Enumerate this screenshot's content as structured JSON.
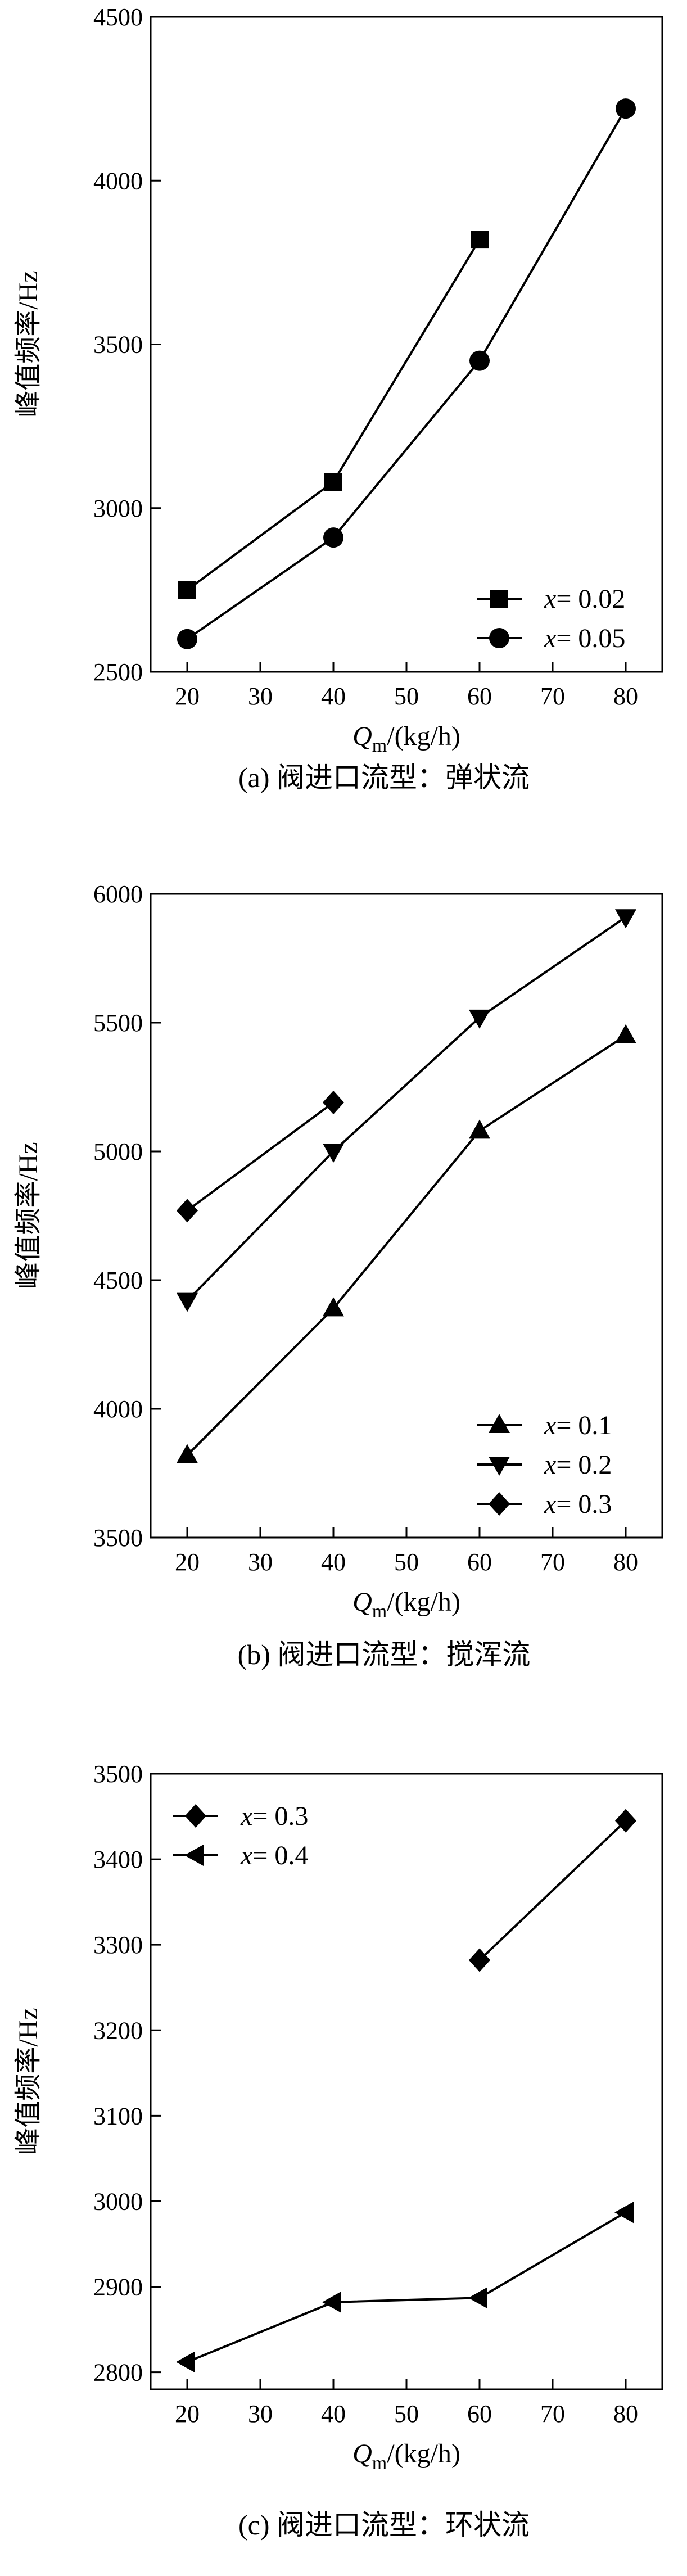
{
  "charts": [
    {
      "id": "a",
      "chart_data": {
        "type": "line",
        "title": "",
        "caption": "(a) 阀进口流型：弹状流",
        "xlabel_main": "Q",
        "xlabel_sub": "m",
        "xlabel_unit": "/(kg/h)",
        "ylabel": "峰值频率/Hz",
        "xlim": [
          15,
          85
        ],
        "ylim": [
          2500,
          4500
        ],
        "xticks": [
          20,
          30,
          40,
          50,
          60,
          70,
          80
        ],
        "yticks": [
          2500,
          3000,
          3500,
          4000,
          4500
        ],
        "legend_position": "lower-right",
        "series": [
          {
            "name": "0.02",
            "marker": "square",
            "x": [
              20,
              40,
              60
            ],
            "y": [
              2750,
              3080,
              3820
            ]
          },
          {
            "name": "0.05",
            "marker": "circle",
            "x": [
              20,
              40,
              60,
              80
            ],
            "y": [
              2600,
              2910,
              3450,
              4220
            ]
          }
        ]
      }
    },
    {
      "id": "b",
      "chart_data": {
        "type": "line",
        "title": "",
        "caption": "(b) 阀进口流型：搅浑流",
        "xlabel_main": "Q",
        "xlabel_sub": "m",
        "xlabel_unit": "/(kg/h)",
        "ylabel": "峰值频率/Hz",
        "xlim": [
          15,
          85
        ],
        "ylim": [
          3500,
          6000
        ],
        "xticks": [
          20,
          30,
          40,
          50,
          60,
          70,
          80
        ],
        "yticks": [
          3500,
          4000,
          4500,
          5000,
          5500,
          6000
        ],
        "legend_position": "lower-right",
        "series": [
          {
            "name": "0.1",
            "marker": "triangle-up",
            "x": [
              20,
              40,
              60,
              80
            ],
            "y": [
              3820,
              4390,
              5080,
              5450
            ]
          },
          {
            "name": "0.2",
            "marker": "triangle-down",
            "x": [
              20,
              40,
              60,
              80
            ],
            "y": [
              4420,
              5000,
              5520,
              5910
            ]
          },
          {
            "name": "0.3",
            "marker": "diamond",
            "x": [
              20,
              40
            ],
            "y": [
              4770,
              5190
            ]
          }
        ]
      }
    },
    {
      "id": "c",
      "chart_data": {
        "type": "line",
        "title": "",
        "caption": "(c) 阀进口流型：环状流",
        "xlabel_main": "Q",
        "xlabel_sub": "m",
        "xlabel_unit": "/(kg/h)",
        "ylabel": "峰值频率/Hz",
        "xlim": [
          15,
          85
        ],
        "ylim": [
          2780,
          3500
        ],
        "xticks": [
          20,
          30,
          40,
          50,
          60,
          70,
          80
        ],
        "yticks": [
          2800,
          2900,
          3000,
          3100,
          3200,
          3300,
          3400,
          3500
        ],
        "legend_position": "top-left",
        "series": [
          {
            "name": "0.3",
            "marker": "diamond",
            "x": [
              60,
              80
            ],
            "y": [
              3282,
              3445
            ]
          },
          {
            "name": "0.4",
            "marker": "triangle-left",
            "x": [
              20,
              40,
              60,
              80
            ],
            "y": [
              2812,
              2882,
              2887,
              2987
            ]
          }
        ]
      }
    }
  ]
}
